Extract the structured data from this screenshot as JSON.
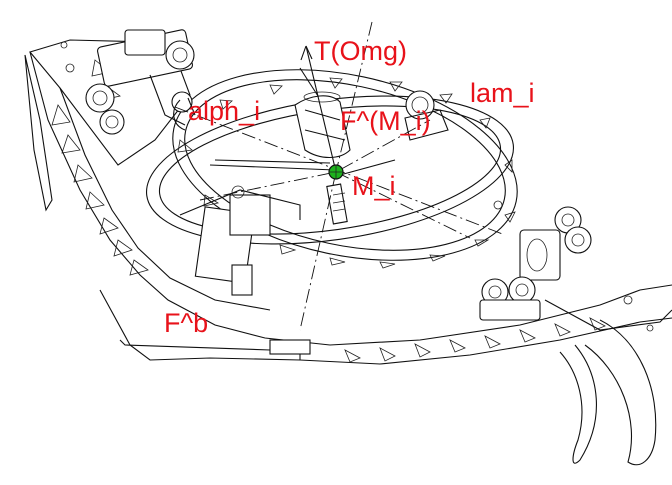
{
  "labels": {
    "T_Omg": "T(Omg)",
    "lam_i": "lam_i",
    "alph_i": "alph_i",
    "F_M_i": "F^(M_i)",
    "M_i": "M_i",
    "F_b": "F^b"
  },
  "colors": {
    "label_text": "#e8121a",
    "line_art": "#111111",
    "center_marker": "#1db21d"
  }
}
